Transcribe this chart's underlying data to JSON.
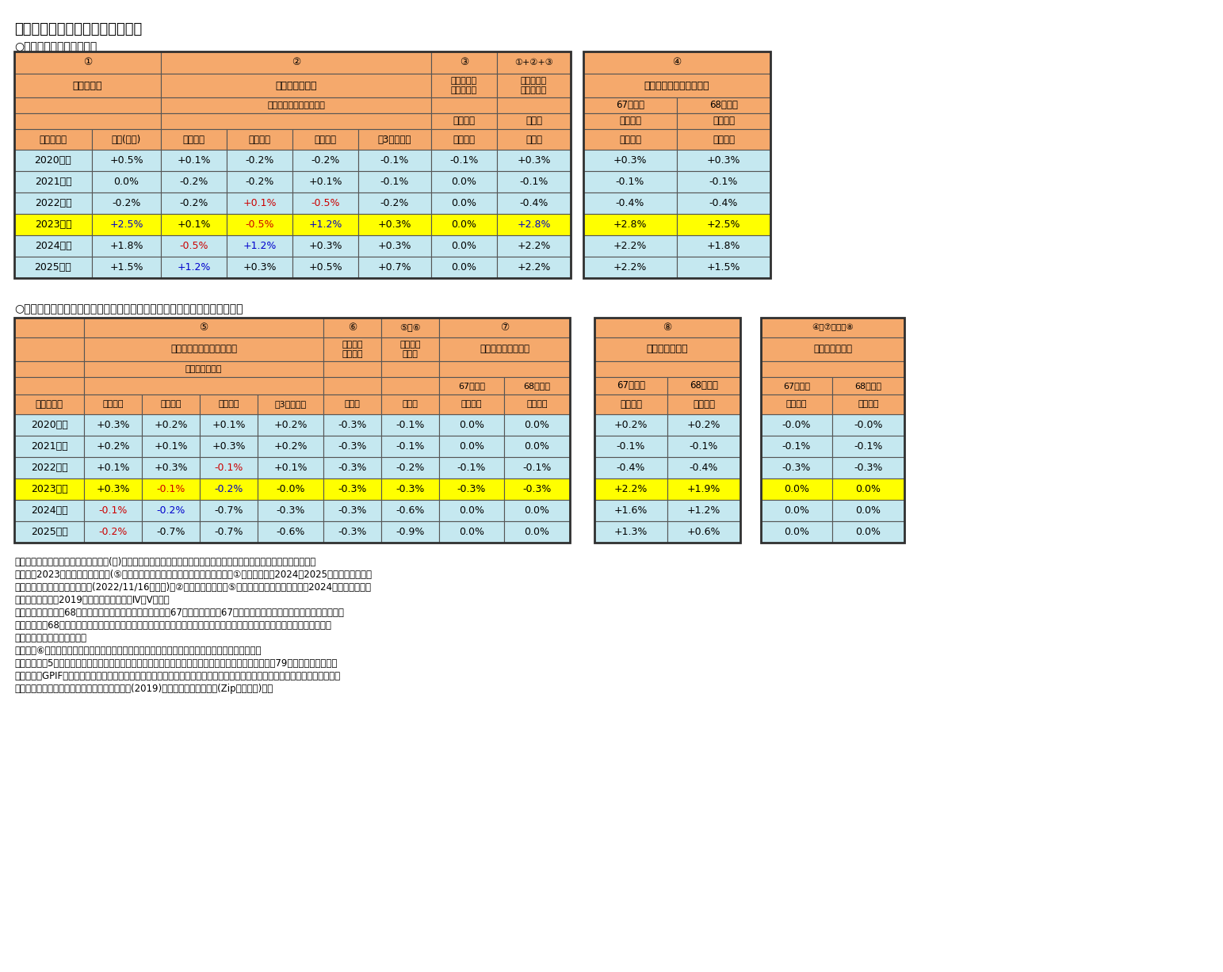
{
  "title": "図表６　年金額改定率の計算過程",
  "section1_title": "○本来の改定率の計算過程",
  "section2_title": "○年金財政健全化のための調整（いわゆるマクロ経済スライド）の計算過程",
  "notes": [
    "（注１）この表では計算過程を変化率(％)の加減算で表しているが、厳密には１を基準とした値の掛け算で計算される。",
    "（注２）2023年度改定までは実績(⑤公的年金加入者数の変動率の内訳は推計）。①物価変動率の2024～2025年度改定はニッセイ基礎研究所の見通し(2022/11/16公表版)。②実質賃金変動率と⑤公的年金加入者数の変動率の2024年度改定以降の仮定は、2019年財政検証のケースⅣ～Ⅴの値。",
    "（注３）厳密には、68歳到達年度の前年度からの繰越分には67歳到達年度の「67歳到達年度まで」の繰越分が用いられ、以後は「68歳到達年度から」の繰越分で更新される。このため、未調整分が存在する場合には生年度によって改定率が異なる可能性がある。",
    "（注４）⑥平均寿命の伸び率の欄は、計算過程を掛け算で示すためにマイナスにした値を載せた。",
    "（資料）図表5の資料に加え、総務省統計局「消費者物価指数」、厚生労働省年金局「厚生年金保険法第79条の８第２項に基づくGPIFにかかる管理積立金の管理及び運用の状況についての評価の結果」、厚生労働省年金局「年金額改定について」（それぞれ各年）、厚生労働省年金局(2019)「財政検証詳細結果等(Zipファイル)」。"
  ],
  "orange_header": "#F5A96C",
  "light_blue": "#C5E8F0",
  "yellow": "#FFFF00",
  "table1": {
    "years": [
      "2020年度",
      "2021年度",
      "2022年度",
      "2023年度",
      "2024年度",
      "2025年度"
    ],
    "col1": [
      "+0.5%",
      "0.0%",
      "-0.2%",
      "+2.5%",
      "+1.8%",
      "+1.5%"
    ],
    "col2_4yr": [
      "+0.1%",
      "-0.2%",
      "-0.2%",
      "+0.1%",
      "-0.5%",
      "+1.2%"
    ],
    "col2_3yr": [
      "-0.2%",
      "-0.2%",
      "+0.1%",
      "-0.5%",
      "+1.2%",
      "+0.3%"
    ],
    "col2_2yr": [
      "-0.2%",
      "+0.1%",
      "-0.5%",
      "+1.2%",
      "+0.3%",
      "+0.5%"
    ],
    "col2_avg": [
      "-0.1%",
      "-0.1%",
      "-0.2%",
      "+0.3%",
      "+0.3%",
      "+0.7%"
    ],
    "col3": [
      "-0.1%",
      "0.0%",
      "0.0%",
      "0.0%",
      "0.0%",
      "0.0%"
    ],
    "col4": [
      "+0.3%",
      "-0.1%",
      "-0.4%",
      "+2.8%",
      "+2.2%",
      "+2.2%"
    ],
    "col5_67": [
      "+0.3%",
      "-0.1%",
      "-0.4%",
      "+2.8%",
      "+2.2%",
      "+2.2%"
    ],
    "col5_68": [
      "+0.3%",
      "-0.1%",
      "-0.4%",
      "+2.5%",
      "+1.8%",
      "+1.5%"
    ],
    "row_colors": [
      "#C5E8F0",
      "#C5E8F0",
      "#C5E8F0",
      "#FFFF00",
      "#C5E8F0",
      "#C5E8F0"
    ],
    "text_colors": [
      [
        "k",
        "k",
        "k",
        "k",
        "k",
        "k",
        "k",
        "k",
        "k"
      ],
      [
        "k",
        "k",
        "k",
        "k",
        "k",
        "k",
        "k",
        "k",
        "k"
      ],
      [
        "k",
        "k",
        "r",
        "r",
        "k",
        "k",
        "k",
        "k",
        "k"
      ],
      [
        "b",
        "k",
        "r",
        "b",
        "k",
        "k",
        "b",
        "k",
        "k"
      ],
      [
        "k",
        "r",
        "b",
        "k",
        "k",
        "k",
        "k",
        "k",
        "k"
      ],
      [
        "k",
        "b",
        "k",
        "k",
        "k",
        "k",
        "k",
        "k",
        "k"
      ]
    ]
  },
  "table2": {
    "years": [
      "2020年度",
      "2021年度",
      "2022年度",
      "2023年度",
      "2024年度",
      "2025年度"
    ],
    "col5_4yr": [
      "+0.3%",
      "+0.2%",
      "+0.1%",
      "+0.3%",
      "-0.1%",
      "-0.2%"
    ],
    "col5_3yr": [
      "+0.2%",
      "+0.1%",
      "+0.3%",
      "-0.1%",
      "-0.2%",
      "-0.7%"
    ],
    "col5_2yr": [
      "+0.1%",
      "+0.3%",
      "-0.1%",
      "-0.2%",
      "-0.7%",
      "-0.7%"
    ],
    "col5_avg": [
      "+0.2%",
      "+0.2%",
      "+0.1%",
      "-0.0%",
      "-0.3%",
      "-0.6%"
    ],
    "col6": [
      "-0.3%",
      "-0.3%",
      "-0.3%",
      "-0.3%",
      "-0.3%",
      "-0.3%"
    ],
    "col56": [
      "-0.1%",
      "-0.1%",
      "-0.2%",
      "-0.3%",
      "-0.6%",
      "-0.9%"
    ],
    "col7_67": [
      "0.0%",
      "0.0%",
      "-0.1%",
      "-0.3%",
      "0.0%",
      "0.0%"
    ],
    "col7_68": [
      "0.0%",
      "0.0%",
      "-0.1%",
      "-0.3%",
      "0.0%",
      "0.0%"
    ],
    "col8_67": [
      "+0.2%",
      "-0.1%",
      "-0.4%",
      "+2.2%",
      "+1.6%",
      "+1.3%"
    ],
    "col8_68": [
      "+0.2%",
      "-0.1%",
      "-0.4%",
      "+1.9%",
      "+1.2%",
      "+0.6%"
    ],
    "col9_67": [
      "-0.0%",
      "-0.1%",
      "-0.3%",
      "0.0%",
      "0.0%",
      "0.0%"
    ],
    "col9_68": [
      "-0.0%",
      "-0.1%",
      "-0.3%",
      "0.0%",
      "0.0%",
      "0.0%"
    ],
    "row_colors": [
      "#C5E8F0",
      "#C5E8F0",
      "#C5E8F0",
      "#FFFF00",
      "#C5E8F0",
      "#C5E8F0"
    ],
    "text_colors": [
      [
        "k",
        "k",
        "k",
        "k",
        "k",
        "k",
        "k",
        "k",
        "k",
        "k",
        "k",
        "k"
      ],
      [
        "k",
        "k",
        "k",
        "k",
        "k",
        "k",
        "k",
        "k",
        "k",
        "k",
        "k",
        "k"
      ],
      [
        "k",
        "k",
        "r",
        "k",
        "k",
        "k",
        "k",
        "k",
        "k",
        "k",
        "k",
        "k"
      ],
      [
        "k",
        "r",
        "b",
        "k",
        "k",
        "k",
        "k",
        "k",
        "k",
        "k",
        "k",
        "k"
      ],
      [
        "r",
        "b",
        "k",
        "k",
        "k",
        "k",
        "k",
        "k",
        "k",
        "k",
        "k",
        "k"
      ],
      [
        "r",
        "k",
        "k",
        "k",
        "k",
        "k",
        "k",
        "k",
        "k",
        "k",
        "k",
        "k"
      ]
    ],
    "col7_yellow_row": 3
  }
}
